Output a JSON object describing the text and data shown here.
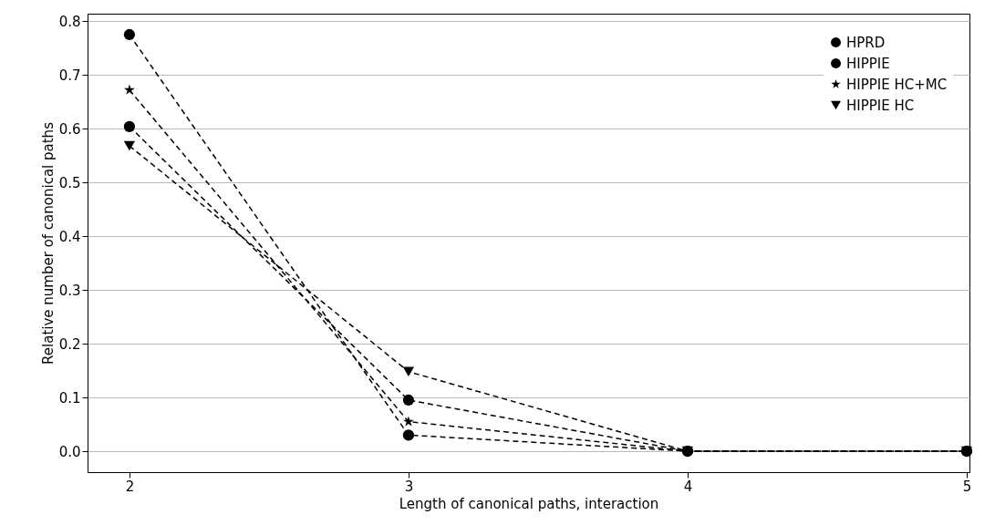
{
  "chart_data": {
    "type": "line",
    "xlabel": "Length of canonical paths, interaction",
    "ylabel": "Relative number of canonical paths",
    "x": [
      2,
      3,
      4,
      5
    ],
    "series": [
      {
        "name": "HPRD",
        "color": "#000000",
        "marker": "circle",
        "line_style": "dashed",
        "values": [
          0.604,
          0.095,
          0.0,
          0.0
        ]
      },
      {
        "name": "HIPPIE",
        "color": "#000000",
        "marker": "circle",
        "line_style": "dashed",
        "values": [
          0.775,
          0.03,
          0.0,
          0.0
        ]
      },
      {
        "name": "HIPPIE HC+MC",
        "color": "#000000",
        "marker": "star",
        "line_style": "dashed",
        "values": [
          0.672,
          0.055,
          0.0,
          0.0
        ]
      },
      {
        "name": "HIPPIE HC",
        "color": "#000000",
        "marker": "triangle",
        "line_style": "dashed",
        "values": [
          0.568,
          0.148,
          0.0,
          0.0
        ]
      }
    ],
    "xlim": [
      1.85,
      5.01
    ],
    "ylim": [
      -0.039,
      0.814
    ],
    "xticks": [
      2,
      3,
      4,
      5
    ],
    "yticks": [
      {
        "value": 0,
        "label": "0.0"
      },
      0.1,
      0.2,
      0.3,
      0.4,
      0.5,
      0.6,
      0.7,
      0.8
    ],
    "grid": "y",
    "legend": "top right"
  }
}
